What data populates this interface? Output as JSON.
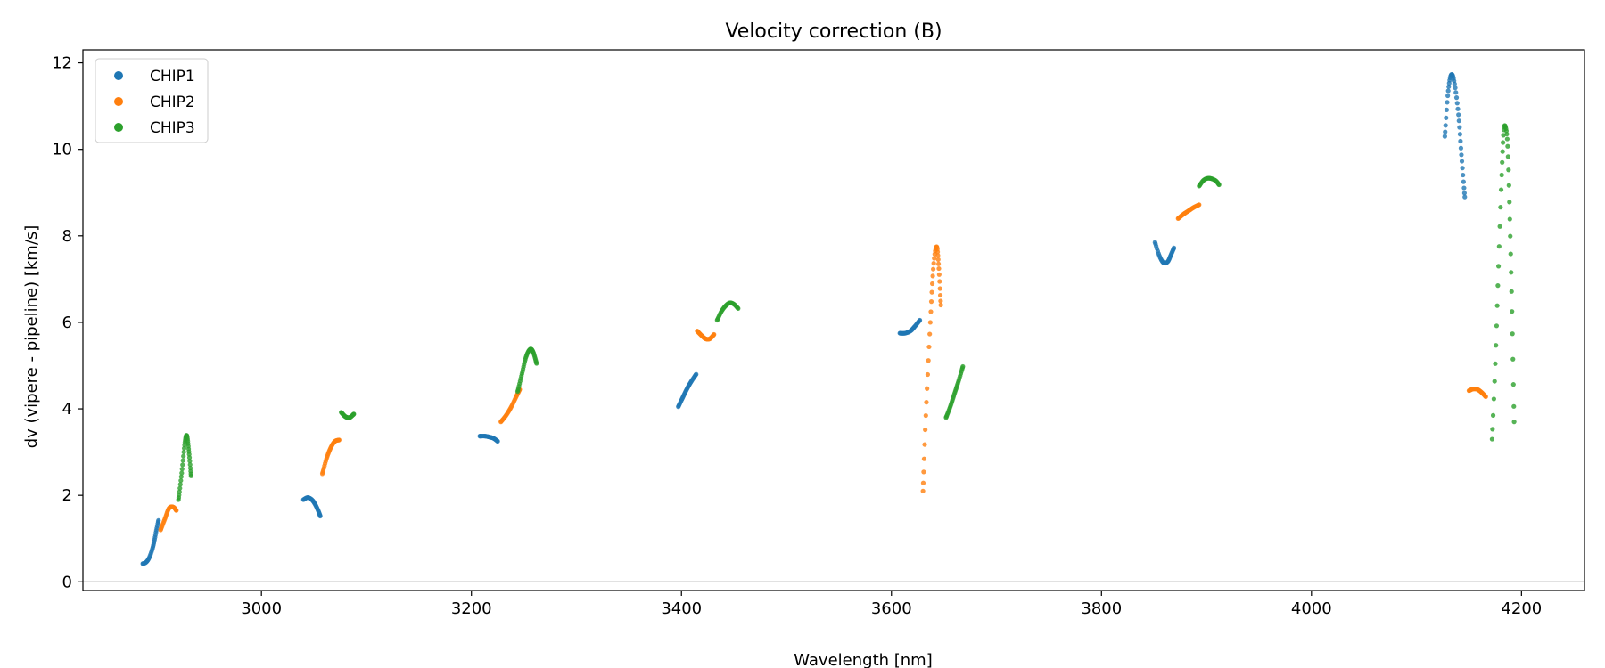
{
  "chart_data": {
    "type": "scatter",
    "title": "Velocity correction (B)",
    "xlabel": "Wavelength [nm]",
    "ylabel": "dv (vipere - pipeline) [km/s]",
    "xlim": [
      2830,
      4260
    ],
    "ylim": [
      -0.2,
      12.3
    ],
    "xticks": [
      3000,
      3200,
      3400,
      3600,
      3800,
      4000,
      4200
    ],
    "yticks": [
      0,
      2,
      4,
      6,
      8,
      10,
      12
    ],
    "hline": 0,
    "legend_position": "top-left",
    "colors": {
      "CHIP1": "#1f77b4",
      "CHIP2": "#ff7f0e",
      "CHIP3": "#2ca02c",
      "zero_line": "#888888"
    },
    "series": [
      {
        "name": "CHIP1",
        "segments": [
          {
            "x": [
              2887,
              2890,
              2893,
              2896,
              2898,
              2900,
              2902
            ],
            "y": [
              0.42,
              0.45,
              0.55,
              0.75,
              0.95,
              1.2,
              1.42
            ],
            "n": 30
          },
          {
            "x": [
              3040,
              3044,
              3048,
              3051,
              3054,
              3056
            ],
            "y": [
              1.9,
              1.95,
              1.9,
              1.8,
              1.65,
              1.52
            ],
            "n": 30
          },
          {
            "x": [
              3208,
              3213,
              3217,
              3221,
              3225
            ],
            "y": [
              3.37,
              3.37,
              3.35,
              3.32,
              3.25
            ],
            "n": 30
          },
          {
            "x": [
              3397,
              3401,
              3405,
              3409,
              3414
            ],
            "y": [
              4.05,
              4.25,
              4.45,
              4.62,
              4.8
            ],
            "n": 30
          },
          {
            "x": [
              3608,
              3613,
              3618,
              3622,
              3627
            ],
            "y": [
              5.75,
              5.75,
              5.8,
              5.9,
              6.05
            ],
            "n": 30
          },
          {
            "x": [
              3851,
              3855,
              3859,
              3863,
              3866,
              3869
            ],
            "y": [
              7.85,
              7.55,
              7.38,
              7.4,
              7.55,
              7.72
            ],
            "n": 30
          },
          {
            "x": [
              4127,
              4130,
              4133,
              4136,
              4140,
              4143,
              4146
            ],
            "y": [
              10.3,
              11.3,
              11.72,
              11.55,
              10.8,
              9.8,
              8.9
            ],
            "n": 40
          }
        ]
      },
      {
        "name": "CHIP2",
        "segments": [
          {
            "x": [
              2904,
              2908,
              2912,
              2916,
              2919
            ],
            "y": [
              1.2,
              1.45,
              1.7,
              1.73,
              1.65
            ],
            "n": 30
          },
          {
            "x": [
              3058,
              3062,
              3066,
              3070,
              3074
            ],
            "y": [
              2.5,
              2.85,
              3.1,
              3.25,
              3.28
            ],
            "n": 30
          },
          {
            "x": [
              3228,
              3233,
              3238,
              3243,
              3246
            ],
            "y": [
              3.7,
              3.85,
              4.05,
              4.3,
              4.45
            ],
            "n": 30
          },
          {
            "x": [
              3415,
              3419,
              3423,
              3427,
              3431
            ],
            "y": [
              5.8,
              5.7,
              5.62,
              5.62,
              5.72
            ],
            "n": 30
          },
          {
            "x": [
              3630,
              3633,
              3637,
              3640,
              3643,
              3645,
              3647
            ],
            "y": [
              2.1,
              4.0,
              6.0,
              7.3,
              7.75,
              7.3,
              6.4
            ],
            "n": 40
          },
          {
            "x": [
              3873,
              3878,
              3883,
              3888,
              3893
            ],
            "y": [
              8.4,
              8.5,
              8.58,
              8.66,
              8.72
            ],
            "n": 30
          },
          {
            "x": [
              4150,
              4154,
              4158,
              4162,
              4166
            ],
            "y": [
              4.42,
              4.46,
              4.45,
              4.38,
              4.28
            ],
            "n": 30
          }
        ]
      },
      {
        "name": "CHIP3",
        "segments": [
          {
            "x": [
              2921,
              2924,
              2927,
              2929,
              2931,
              2933
            ],
            "y": [
              1.9,
              2.5,
              3.2,
              3.38,
              3.0,
              2.45
            ],
            "n": 40
          },
          {
            "x": [
              3076,
              3080,
              3084,
              3088
            ],
            "y": [
              3.92,
              3.82,
              3.8,
              3.88
            ],
            "n": 30
          },
          {
            "x": [
              3244,
              3248,
              3252,
              3256,
              3259,
              3262
            ],
            "y": [
              4.4,
              4.8,
              5.2,
              5.38,
              5.3,
              5.05
            ],
            "n": 40
          },
          {
            "x": [
              3434,
              3438,
              3442,
              3446,
              3450,
              3454
            ],
            "y": [
              6.05,
              6.25,
              6.38,
              6.45,
              6.42,
              6.32
            ],
            "n": 30
          },
          {
            "x": [
              3652,
              3656,
              3660,
              3664,
              3668
            ],
            "y": [
              3.8,
              4.05,
              4.35,
              4.65,
              4.98
            ],
            "n": 30
          },
          {
            "x": [
              3893,
              3897,
              3901,
              3905,
              3909,
              3912
            ],
            "y": [
              9.15,
              9.28,
              9.33,
              9.32,
              9.27,
              9.18
            ],
            "n": 30
          },
          {
            "x": [
              4172,
              4175,
              4178,
              4181,
              4183,
              4185,
              4187,
              4189,
              4191,
              4193
            ],
            "y": [
              3.3,
              5.0,
              7.2,
              9.3,
              10.4,
              10.5,
              10.0,
              8.3,
              6.2,
              3.7
            ],
            "n": 45
          }
        ]
      }
    ]
  }
}
